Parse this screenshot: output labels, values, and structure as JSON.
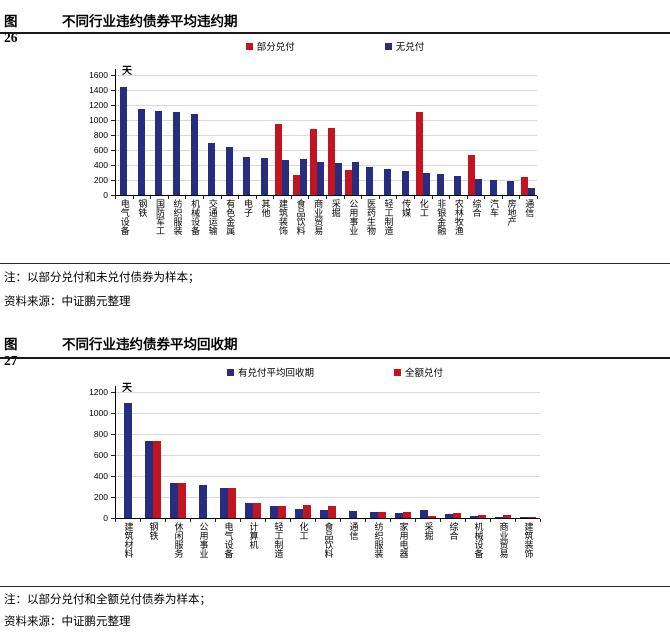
{
  "colors": {
    "bar_blue": "#272e81",
    "bar_red": "#c31421",
    "grid": "#d9d9d9",
    "axis": "#000000"
  },
  "figures": [
    {
      "note": "注：以部分兑付和未兑付债券为样本；",
      "source": "资料来源：中证鹏元整理"
    },
    {
      "note": "注：以部分兑付和全额兑付债券为样本；",
      "source": "资料来源：中证鹏元整理"
    }
  ],
  "chart_data": [
    {
      "type": "bar",
      "figure_tag": "图26",
      "title": "不同行业违约债券平均违约期",
      "unit_label": "天",
      "ylim": [
        0,
        1600
      ],
      "ytick_step": 200,
      "grid": true,
      "legend_position": "top",
      "categories": [
        "电气设备",
        "钢铁",
        "国防军工",
        "纺织服装",
        "机械设备",
        "交通运输",
        "有色金属",
        "电子",
        "其他",
        "建筑装饰",
        "食品饮料",
        "商业贸易",
        "采掘",
        "公用事业",
        "医药生物",
        "轻工制造",
        "传媒",
        "化工",
        "非银金融",
        "农林牧渔",
        "综合",
        "汽车",
        "房地产",
        "通信"
      ],
      "series": [
        {
          "name": "部分兑付",
          "color": "red",
          "values": [
            null,
            null,
            null,
            null,
            null,
            null,
            null,
            null,
            null,
            950,
            270,
            880,
            890,
            330,
            null,
            null,
            null,
            1110,
            null,
            null,
            530,
            null,
            null,
            235
          ]
        },
        {
          "name": "无兑付",
          "color": "blue",
          "values": [
            1440,
            1150,
            1120,
            1110,
            1080,
            700,
            640,
            505,
            495,
            470,
            475,
            445,
            430,
            440,
            370,
            350,
            325,
            300,
            285,
            250,
            210,
            200,
            185,
            95
          ]
        }
      ]
    },
    {
      "type": "bar",
      "figure_tag": "图27",
      "title": "不同行业违约债券平均回收期",
      "unit_label": "天",
      "ylim": [
        0,
        1200
      ],
      "ytick_step": 200,
      "grid": true,
      "legend_position": "top",
      "categories": [
        "建筑材料",
        "钢铁",
        "休闲服务",
        "公用事业",
        "电气设备",
        "计算机",
        "轻工制造",
        "化工",
        "食品饮料",
        "通信",
        "纺织服装",
        "家用电器",
        "采掘",
        "综合",
        "机械设备",
        "商业贸易",
        "建筑装饰"
      ],
      "series": [
        {
          "name": "有兑付平均回收期",
          "color": "blue",
          "values": [
            1095,
            735,
            335,
            310,
            290,
            140,
            115,
            90,
            75,
            65,
            55,
            50,
            80,
            35,
            20,
            10,
            8
          ]
        },
        {
          "name": "全额兑付",
          "color": "red",
          "values": [
            null,
            735,
            335,
            null,
            290,
            140,
            115,
            125,
            110,
            null,
            55,
            55,
            20,
            45,
            30,
            27,
            10
          ]
        }
      ]
    }
  ]
}
